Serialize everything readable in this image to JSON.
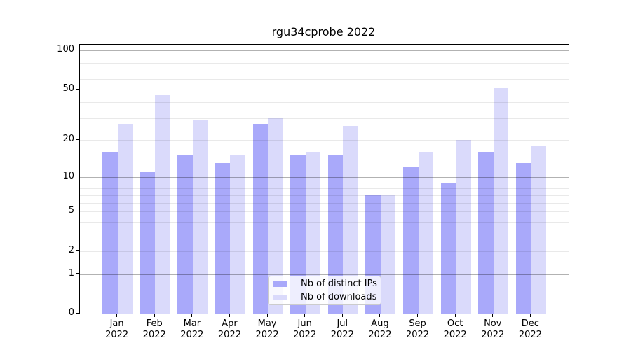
{
  "chart_data": {
    "type": "bar",
    "title": "rgu34cprobe 2022",
    "categories": [
      "Jan",
      "Feb",
      "Mar",
      "Apr",
      "May",
      "Jun",
      "Jul",
      "Aug",
      "Sep",
      "Oct",
      "Nov",
      "Dec"
    ],
    "year_label": "2022",
    "series": [
      {
        "name": "Nb of distinct IPs",
        "color": "#a9a9fa",
        "values": [
          16,
          11,
          15,
          13,
          27,
          15,
          15,
          7,
          12,
          9,
          16,
          13
        ]
      },
      {
        "name": "Nb of downloads",
        "color": "#dadafb",
        "values": [
          27,
          45,
          29,
          15,
          30,
          16,
          26,
          7,
          16,
          20,
          51,
          18
        ]
      }
    ],
    "yscale": "log1p",
    "ylim": [
      0,
      111
    ],
    "y_tick_labels": [
      100,
      50,
      20,
      10,
      5,
      2,
      1,
      0
    ],
    "y_major_gridlines": [
      1,
      10,
      100
    ],
    "y_minor_gridlines": [
      2,
      3,
      4,
      5,
      6,
      7,
      8,
      9,
      20,
      30,
      40,
      50,
      60,
      70,
      80,
      90
    ],
    "grid": true,
    "legend_position": "lower center"
  },
  "legend": {
    "items": [
      {
        "label": "Nb of distinct IPs",
        "color": "#a9a9fa"
      },
      {
        "label": "Nb of downloads",
        "color": "#dadafb"
      }
    ]
  }
}
